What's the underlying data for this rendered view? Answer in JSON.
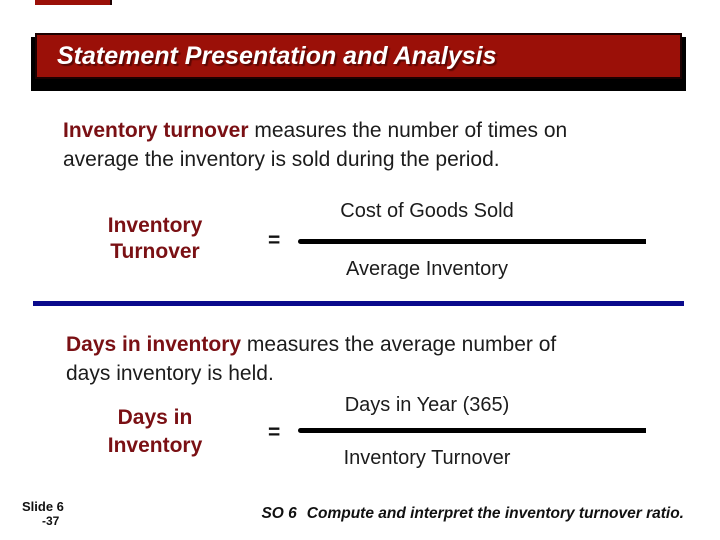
{
  "colors": {
    "title_red": "#9b1008",
    "maroon_accent": "#7a1014",
    "rule_blue": "#0a0a8c",
    "shadow_black": "#000000"
  },
  "title": {
    "text": "Statement Presentation and Analysis"
  },
  "paragraphs": [
    {
      "lead": "Inventory turnover",
      "line1_rest": " measures the number of times on",
      "line2": "average the inventory is sold during the period."
    },
    {
      "lead": "Days in inventory",
      "line1_rest": " measures the average number of",
      "line2": "days inventory is held."
    }
  ],
  "formulas": [
    {
      "label_line1": "Inventory",
      "label_line2": "Turnover",
      "equals": "=",
      "numerator": "Cost of Goods Sold",
      "denominator": "Average Inventory"
    },
    {
      "label_line1": "Days in",
      "label_line2": "Inventory",
      "equals": "=",
      "numerator": "Days in Year (365)",
      "denominator": "Inventory Turnover"
    }
  ],
  "footer": {
    "slide_label": "Slide 6",
    "slide_number": "-37",
    "so_tag": "SO 6",
    "so_text": "Compute and interpret the inventory turnover ratio."
  }
}
